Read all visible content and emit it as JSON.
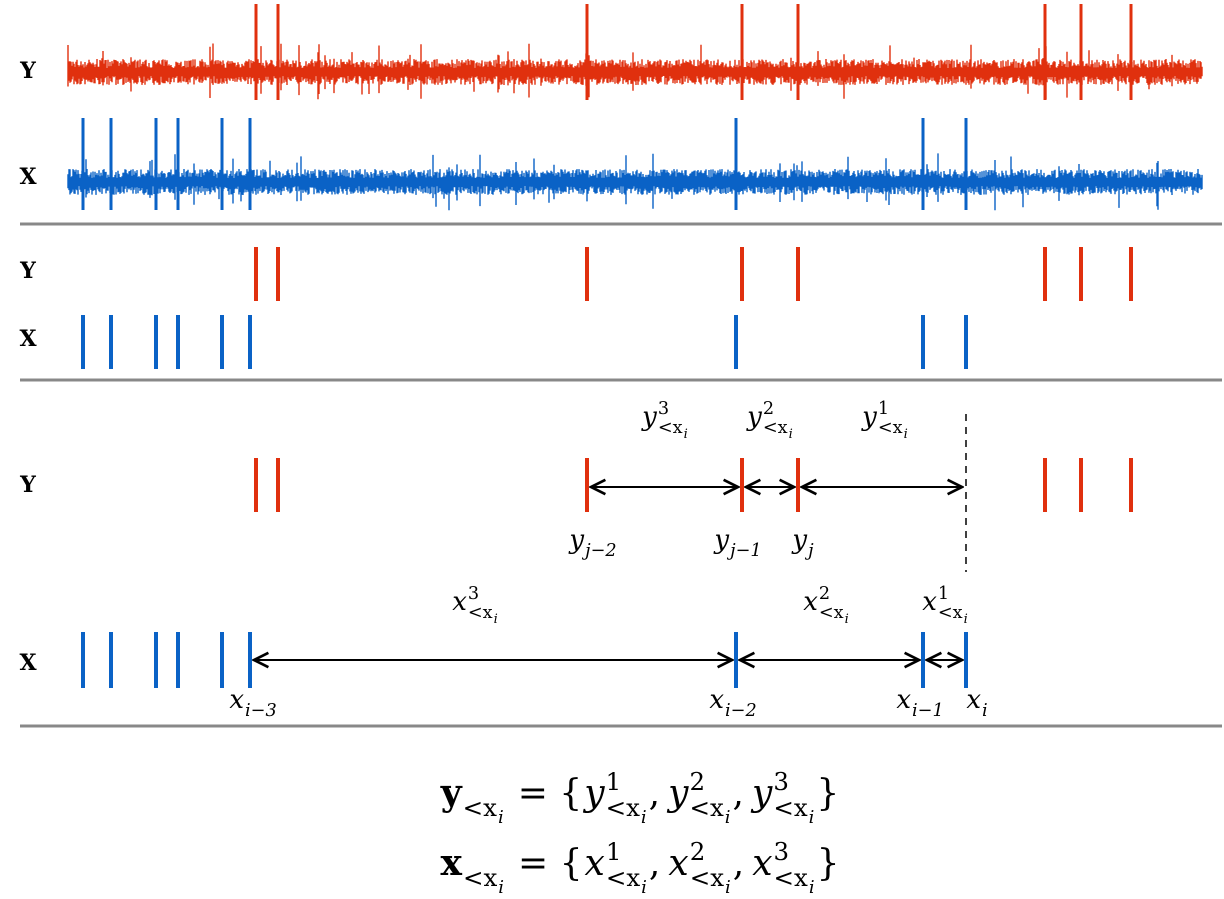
{
  "row_labels": [
    "Y",
    "X",
    "Y",
    "X",
    "Y",
    "X"
  ],
  "intervals_y": [
    {
      "base": "y",
      "sup": "3",
      "sub": "<x",
      "sub2": "i"
    },
    {
      "base": "y",
      "sup": "2",
      "sub": "<x",
      "sub2": "i"
    },
    {
      "base": "y",
      "sup": "1",
      "sub": "<x",
      "sub2": "i"
    }
  ],
  "events_y": [
    {
      "base": "y",
      "sub": "j−2"
    },
    {
      "base": "y",
      "sub": "j−1"
    },
    {
      "base": "y",
      "sub": "j"
    }
  ],
  "intervals_x": [
    {
      "base": "x",
      "sup": "3",
      "sub": "<x",
      "sub2": "i"
    },
    {
      "base": "x",
      "sup": "2",
      "sub": "<x",
      "sub2": "i"
    },
    {
      "base": "x",
      "sup": "1",
      "sub": "<x",
      "sub2": "i"
    }
  ],
  "events_x": [
    {
      "base": "x",
      "sub": "i−3"
    },
    {
      "base": "x",
      "sub": "i−2"
    },
    {
      "base": "x",
      "sub": "i−1"
    },
    {
      "base": "x",
      "sub": "i"
    }
  ],
  "equations": [
    {
      "lhs": {
        "base": "y",
        "sub": "<x",
        "sub2": "i"
      },
      "eq": "= {",
      "terms": [
        {
          "base": "y",
          "sup": "1",
          "sub": "<x",
          "sub2": "i"
        },
        {
          "base": "y",
          "sup": "2",
          "sub": "<x",
          "sub2": "i"
        },
        {
          "base": "y",
          "sup": "3",
          "sub": "<x",
          "sub2": "i"
        }
      ],
      "sep": ",",
      "close": "}"
    },
    {
      "lhs": {
        "base": "x",
        "sub": "<x",
        "sub2": "i"
      },
      "eq": "= {",
      "terms": [
        {
          "base": "x",
          "sup": "1",
          "sub": "<x",
          "sub2": "i"
        },
        {
          "base": "x",
          "sup": "2",
          "sub": "<x",
          "sub2": "i"
        },
        {
          "base": "x",
          "sup": "3",
          "sub": "<x",
          "sub2": "i"
        }
      ],
      "sep": ",",
      "close": "}"
    }
  ]
}
